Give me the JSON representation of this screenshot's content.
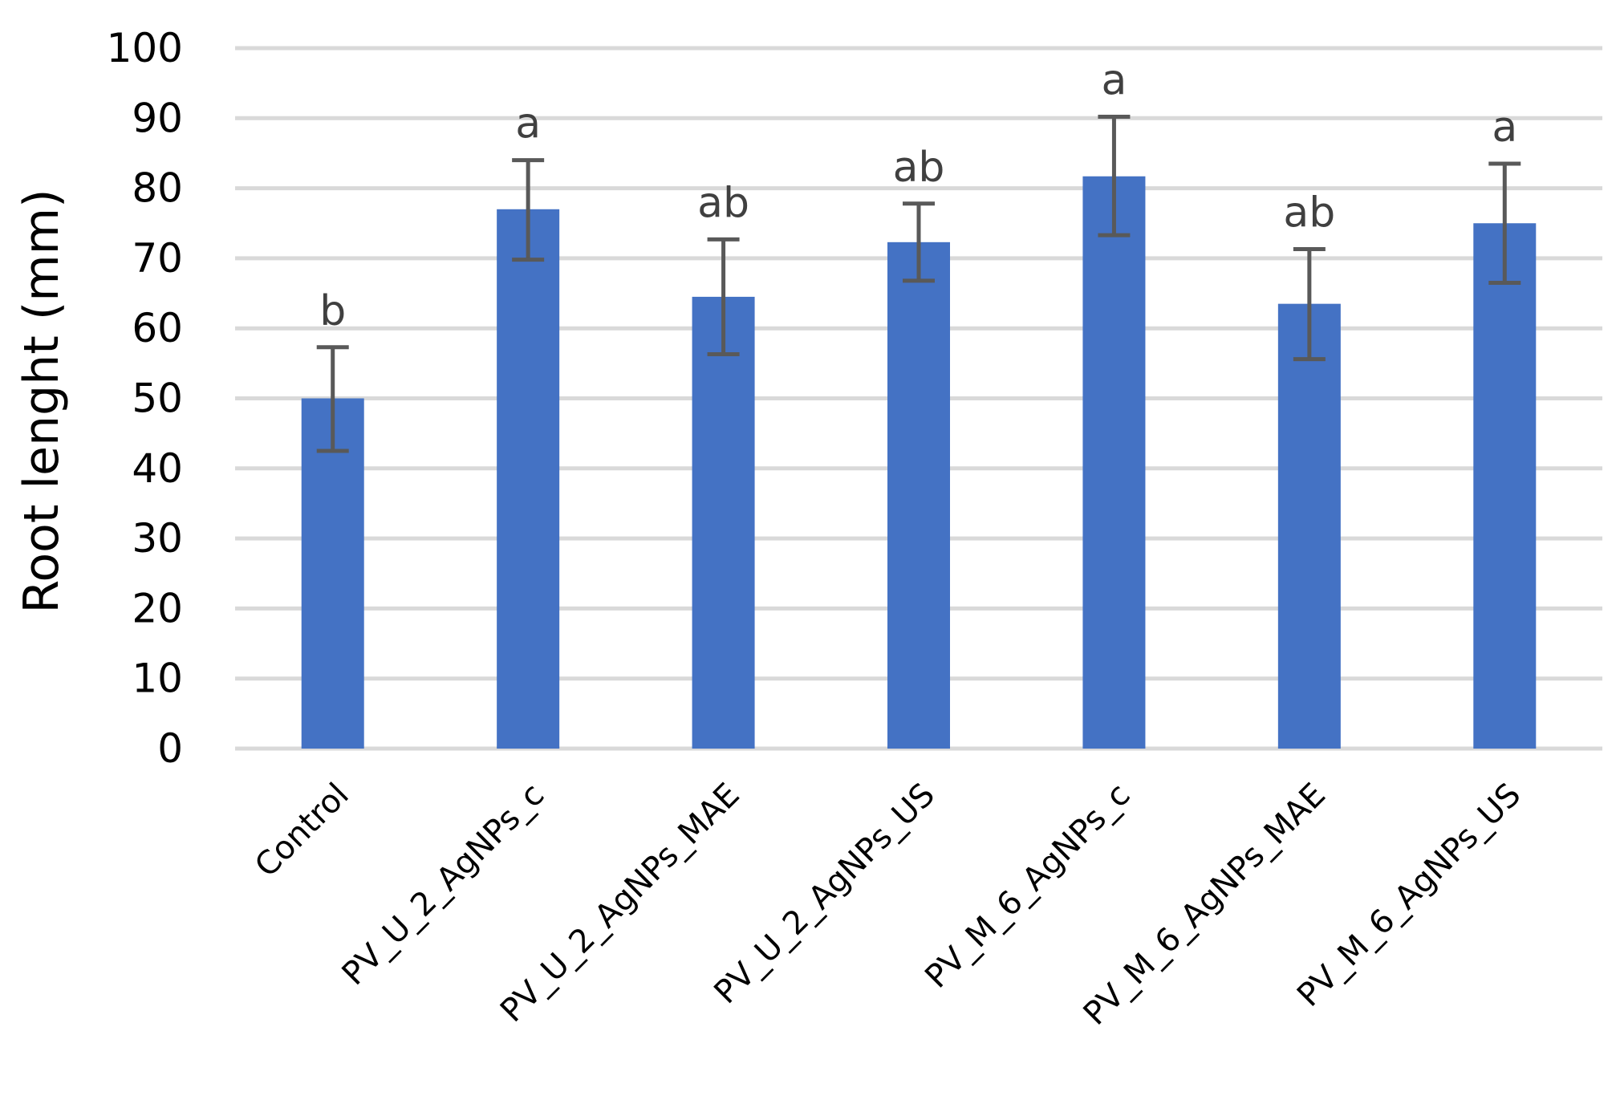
{
  "chart_data": {
    "type": "bar",
    "title": "",
    "xlabel": "",
    "ylabel": "Root lenght (mm)",
    "ylim": [
      0,
      100
    ],
    "yticks": [
      0,
      10,
      20,
      30,
      40,
      50,
      60,
      70,
      80,
      90,
      100
    ],
    "grid": true,
    "legend": "none",
    "bar_color": "#4472c4",
    "error_bar_color": "#595959",
    "categories": [
      "Control",
      "PV_U_2_AgNPs_c",
      "PV_U_2_AgNPs_MAE",
      "PV_U_2_AgNPs_US",
      "PV_M_6_AgNPs_c",
      "PV_M_6_AgNPs_MAE",
      "PV_M_6_AgNPs_US"
    ],
    "values": [
      50.0,
      77.0,
      64.5,
      72.3,
      81.7,
      63.5,
      75.0
    ],
    "error_low": [
      42.5,
      69.8,
      56.3,
      66.8,
      73.3,
      55.6,
      66.5
    ],
    "error_high": [
      57.3,
      84.0,
      72.7,
      77.8,
      90.2,
      71.3,
      83.5
    ],
    "annotations": [
      "b",
      "a",
      "ab",
      "ab",
      "a",
      "ab",
      "a"
    ]
  }
}
